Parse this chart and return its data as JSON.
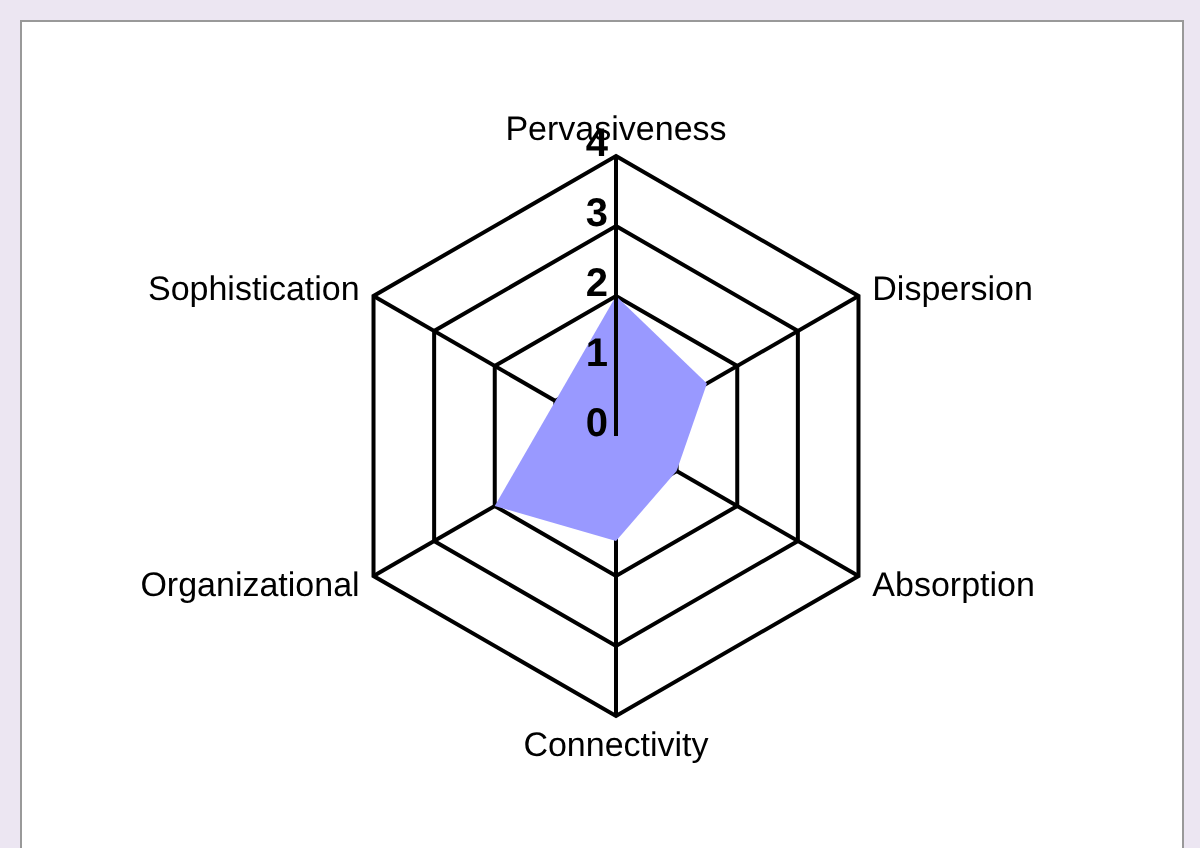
{
  "chart_data": {
    "type": "radar",
    "categories": [
      "Pervasiveness",
      "Dispersion",
      "Absorption",
      "Connectivity",
      "Organizational",
      "Sophistication"
    ],
    "series": [
      {
        "color": "#9999ff",
        "values": [
          2,
          1.5,
          1,
          1.5,
          2,
          1
        ]
      }
    ],
    "ylim": [
      0,
      4
    ],
    "yticks": [
      0,
      1,
      2,
      3,
      4
    ],
    "grid": true,
    "legend": false
  }
}
